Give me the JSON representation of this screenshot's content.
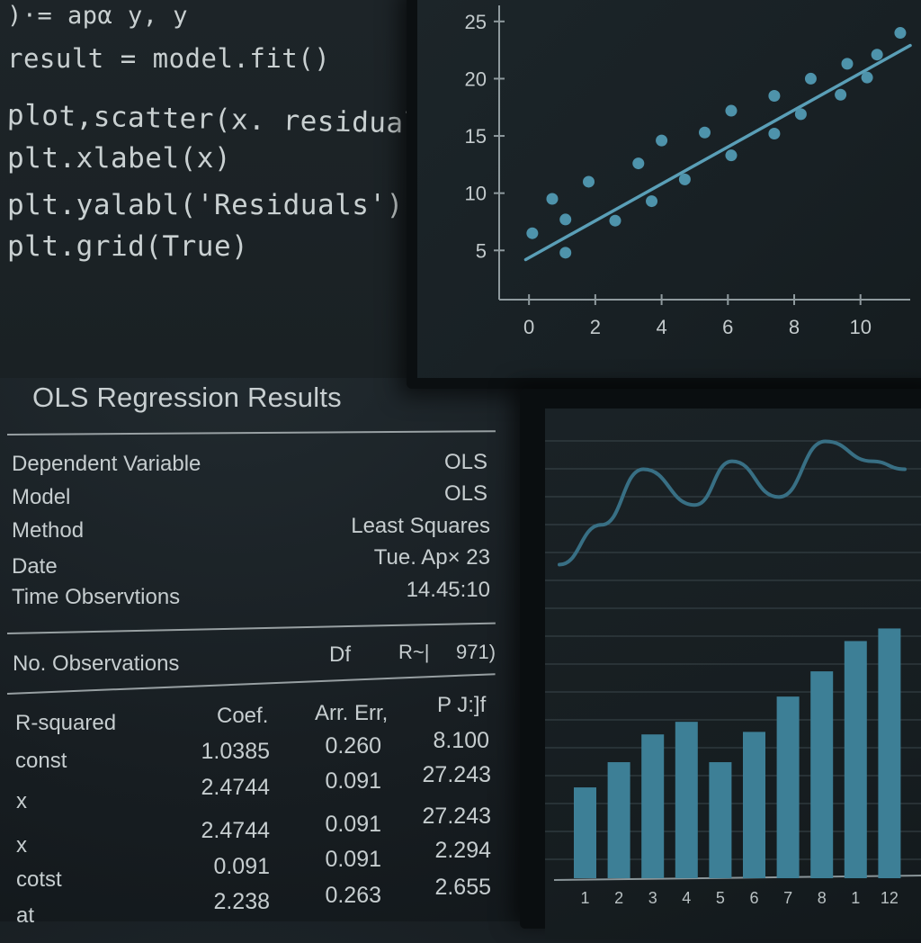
{
  "code": {
    "lines": [
      ")·=   apα  y, y",
      "result = model.fit()",
      "plot,scatter(x. residuals)",
      "plt.xlabel(x)",
      "plt.yalabl('Residuals')",
      "plt.grid(True)"
    ]
  },
  "scatter_chart": {
    "chart_data": {
      "type": "scatter",
      "x_ticks": [
        "0",
        "2",
        "4",
        "6",
        "8",
        "10"
      ],
      "y_ticks": [
        "5",
        "10",
        "15",
        "20",
        "25"
      ],
      "xlim": [
        -0.9,
        11.5
      ],
      "ylim": [
        0.7,
        26.4
      ],
      "points": [
        {
          "x": 0.1,
          "y": 6.5
        },
        {
          "x": 0.7,
          "y": 9.5
        },
        {
          "x": 1.1,
          "y": 7.7
        },
        {
          "x": 1.1,
          "y": 4.8
        },
        {
          "x": 1.8,
          "y": 11.0
        },
        {
          "x": 2.6,
          "y": 7.6
        },
        {
          "x": 3.3,
          "y": 12.6
        },
        {
          "x": 3.7,
          "y": 9.3
        },
        {
          "x": 4.0,
          "y": 14.6
        },
        {
          "x": 4.7,
          "y": 11.2
        },
        {
          "x": 5.3,
          "y": 15.3
        },
        {
          "x": 6.1,
          "y": 13.3
        },
        {
          "x": 6.1,
          "y": 17.2
        },
        {
          "x": 7.4,
          "y": 18.5
        },
        {
          "x": 7.4,
          "y": 15.2
        },
        {
          "x": 8.2,
          "y": 16.9
        },
        {
          "x": 8.5,
          "y": 20.0
        },
        {
          "x": 9.4,
          "y": 18.6
        },
        {
          "x": 9.6,
          "y": 21.3
        },
        {
          "x": 10.2,
          "y": 20.1
        },
        {
          "x": 10.5,
          "y": 22.1
        },
        {
          "x": 11.2,
          "y": 24.0
        }
      ],
      "fit_line": [
        {
          "x": -0.1,
          "y": 4.2
        },
        {
          "x": 11.5,
          "y": 22.9
        }
      ],
      "colors": {
        "point": "#4e93ab",
        "line": "#5a9fb7",
        "axis": "#8f9a9e"
      }
    }
  },
  "ols": {
    "title": "OLS Regression Results",
    "info_labels": [
      "Dependent Variable",
      "Model",
      "Method",
      "Date",
      "Time  Observtions"
    ],
    "info_values": [
      "OLS",
      "OLS",
      "Least Squares",
      "Tue. Ap× 23",
      "14.45:10"
    ],
    "obs_row": {
      "label": "No. Observations",
      "df": "Df",
      "r": "R~|",
      "val": "971)"
    },
    "coef_headers": [
      "Coef.",
      "Arr. Err,",
      "P J:]f"
    ],
    "row_labels": [
      "R-squared",
      "const",
      "x",
      "x",
      "cotst",
      "at"
    ],
    "coef_rows": [
      [
        "1.0385",
        "0.260",
        "8.100"
      ],
      [
        "2.4744",
        "0.091",
        "27.243"
      ],
      [
        "2.4744",
        "0.091",
        "27.243"
      ],
      [
        "0.091",
        "0.091",
        "2.294"
      ],
      [
        "2.238",
        "0.263",
        "2.655"
      ]
    ]
  },
  "bar_chart": {
    "chart_data": {
      "type": "bar",
      "categories": [
        "1",
        "2",
        "3",
        "4",
        "5",
        "6",
        "7",
        "8",
        "1",
        "12"
      ],
      "values": [
        3.6,
        4.6,
        5.7,
        6.2,
        4.6,
        5.8,
        7.2,
        8.2,
        9.4,
        9.9
      ],
      "ylim": [
        0,
        10.7
      ],
      "line_series": [
        {
          "x": 0.0,
          "y": 0.6
        },
        {
          "x": 0.9,
          "y": 1.6
        },
        {
          "x": 1.8,
          "y": 3.0
        },
        {
          "x": 2.9,
          "y": 2.1
        },
        {
          "x": 3.7,
          "y": 3.2
        },
        {
          "x": 4.7,
          "y": 2.3
        },
        {
          "x": 5.7,
          "y": 3.7
        },
        {
          "x": 6.7,
          "y": 3.2
        },
        {
          "x": 7.4,
          "y": 3.0
        }
      ],
      "line_ylim": [
        0,
        4.3
      ],
      "colors": {
        "bar": "#3d7f96",
        "line": "#386f84",
        "grid": "#3a464b",
        "axis": "#8a9599"
      }
    }
  }
}
